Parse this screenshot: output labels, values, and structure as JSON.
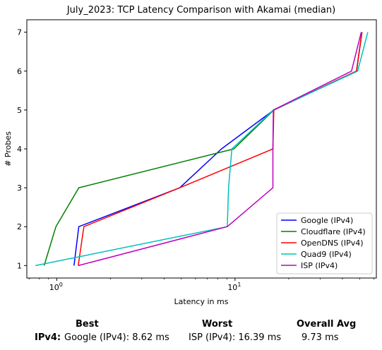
{
  "chart_data": {
    "type": "line",
    "title": "July_2023: TCP Latency Comparison with Akamai (median)",
    "xlabel": "Latency in ms",
    "ylabel": "# Probes",
    "xscale": "log",
    "xlim": [
      0.68,
      62
    ],
    "ylim": [
      0.68,
      7.32
    ],
    "x_ticks": [
      {
        "value": 1,
        "label": "10^0",
        "base": "10",
        "exp": "0"
      },
      {
        "value": 10,
        "label": "10^1",
        "base": "10",
        "exp": "1"
      }
    ],
    "y_ticks": [
      1,
      2,
      3,
      4,
      5,
      6,
      7
    ],
    "legend_position": "lower-right",
    "series": [
      {
        "name": "Google (IPv4)",
        "color": "#0000ff",
        "points": [
          [
            1.25,
            1
          ],
          [
            1.33,
            2
          ],
          [
            4.9,
            3
          ],
          [
            8.4,
            4
          ],
          [
            16.5,
            5
          ],
          [
            48.0,
            6
          ],
          [
            51.5,
            7
          ]
        ]
      },
      {
        "name": "Cloudflare (IPv4)",
        "color": "#008000",
        "points": [
          [
            0.85,
            1
          ],
          [
            0.99,
            2
          ],
          [
            1.33,
            3
          ],
          [
            9.85,
            4
          ],
          [
            16.5,
            5
          ],
          [
            48.0,
            6
          ],
          [
            51.5,
            7
          ]
        ]
      },
      {
        "name": "OpenDNS (IPv4)",
        "color": "#ff0000",
        "points": [
          [
            1.32,
            1
          ],
          [
            1.42,
            2
          ],
          [
            4.9,
            3
          ],
          [
            16.3,
            4
          ],
          [
            16.5,
            5
          ],
          [
            48.0,
            6
          ],
          [
            51.5,
            7
          ]
        ]
      },
      {
        "name": "Quad9 (IPv4)",
        "color": "#00bfbf",
        "points": [
          [
            0.76,
            1
          ],
          [
            9.05,
            2
          ],
          [
            9.2,
            3
          ],
          [
            9.6,
            4
          ],
          [
            16.4,
            5
          ],
          [
            48.7,
            6
          ],
          [
            55.5,
            7
          ]
        ]
      },
      {
        "name": "ISP (IPv4)",
        "color": "#bf00bf",
        "points": [
          [
            1.32,
            1
          ],
          [
            9.05,
            2
          ],
          [
            16.3,
            3
          ],
          [
            16.3,
            4
          ],
          [
            16.4,
            5
          ],
          [
            45.0,
            6
          ],
          [
            51.0,
            7
          ]
        ]
      }
    ]
  },
  "stats": {
    "best_header": "Best",
    "worst_header": "Worst",
    "avg_header": "Overall Avg",
    "row_label": "IPv4",
    "row_sep": ":",
    "best_value": "Google (IPv4): 8.62 ms",
    "worst_value": "ISP (IPv4): 16.39 ms",
    "avg_value": "9.73 ms"
  }
}
